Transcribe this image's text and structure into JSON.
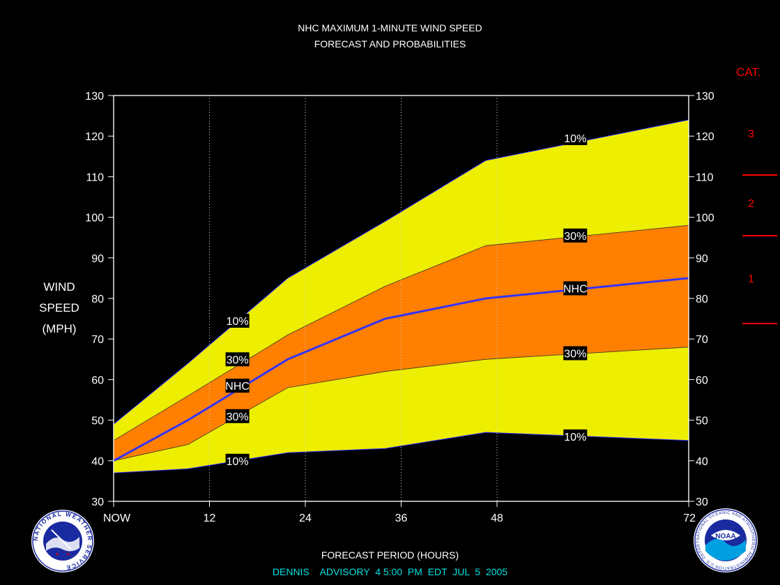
{
  "titles": {
    "line1": "NHC MAXIMUM 1-MINUTE WIND SPEED",
    "line2": "FORECAST AND PROBABILITIES"
  },
  "y_axis_label": [
    "WIND",
    "SPEED",
    "(MPH)"
  ],
  "x_axis_label": "FORECAST PERIOD (HOURS)",
  "advisory": {
    "storm": "DENNIS",
    "text": "ADVISORY  4 5:00  PM  EDT  JUL  5  2005"
  },
  "category_scale": {
    "title": "CAT.",
    "labels": [
      "1",
      "2",
      "3"
    ],
    "boundaries_mph": [
      74,
      96,
      111
    ]
  },
  "colors": {
    "background": "#000000",
    "band_10_90": "#eeee00",
    "band_30_70": "#ff7f00",
    "nhc_line": "#3333ff",
    "category": "#ff0000",
    "advisory": "#00e0e0"
  },
  "logos": {
    "left": "nws-logo",
    "right": "noaa-logo",
    "left_ring_text": "NATIONAL WEATHER SERVICE",
    "right_center_text": "NOAA",
    "right_ring_text": "NATIONAL OCEANIC AND ATMOSPHERIC ADMINISTRATION U.S. DEPARTMENT OF COMMERCE"
  },
  "chart_data": {
    "type": "area",
    "xlabel": "FORECAST PERIOD (HOURS)",
    "ylabel": "WIND SPEED (MPH)",
    "xlim": [
      0,
      72
    ],
    "ylim": [
      30,
      130
    ],
    "x_ticks": [
      0,
      12,
      24,
      36,
      48,
      72
    ],
    "x_tick_labels": [
      "NOW",
      "12",
      "24",
      "36",
      "48",
      "72"
    ],
    "y_ticks": [
      30,
      40,
      50,
      60,
      70,
      80,
      90,
      100,
      110,
      120,
      130
    ],
    "y_tick_labels": [
      "30",
      "40",
      "50",
      "60",
      "70",
      "80",
      "90",
      "100",
      "110",
      "120",
      "130"
    ],
    "x": [
      0,
      9.3,
      21.8,
      34.0,
      46.6,
      72
    ],
    "series": [
      {
        "name": "10%",
        "role": "upper",
        "values": [
          49,
          64,
          85,
          99,
          114,
          124
        ]
      },
      {
        "name": "30%",
        "role": "upper",
        "values": [
          45,
          56,
          71,
          83,
          93,
          98
        ]
      },
      {
        "name": "NHC",
        "role": "forecast",
        "values": [
          40,
          50,
          65,
          75,
          80,
          85
        ]
      },
      {
        "name": "30%",
        "role": "lower",
        "values": [
          40,
          44,
          58,
          62,
          65,
          68
        ]
      },
      {
        "name": "10%",
        "role": "lower",
        "values": [
          37,
          38,
          42,
          43,
          47,
          45
        ]
      }
    ],
    "curve_labels": [
      {
        "text": "10%",
        "x": 15.5,
        "y": 74.5
      },
      {
        "text": "30%",
        "x": 15.5,
        "y": 65
      },
      {
        "text": "NHC",
        "x": 15.5,
        "y": 58.5
      },
      {
        "text": "30%",
        "x": 15.5,
        "y": 51
      },
      {
        "text": "10%",
        "x": 15.5,
        "y": 40
      },
      {
        "text": "10%",
        "x": 57.8,
        "y": 119.5
      },
      {
        "text": "30%",
        "x": 57.8,
        "y": 95.5
      },
      {
        "text": "NHC",
        "x": 57.8,
        "y": 82.5
      },
      {
        "text": "30%",
        "x": 57.8,
        "y": 66.5
      },
      {
        "text": "10%",
        "x": 57.8,
        "y": 46
      }
    ],
    "vertical_grid": [
      12,
      24,
      36,
      48
    ],
    "legend": "none"
  }
}
